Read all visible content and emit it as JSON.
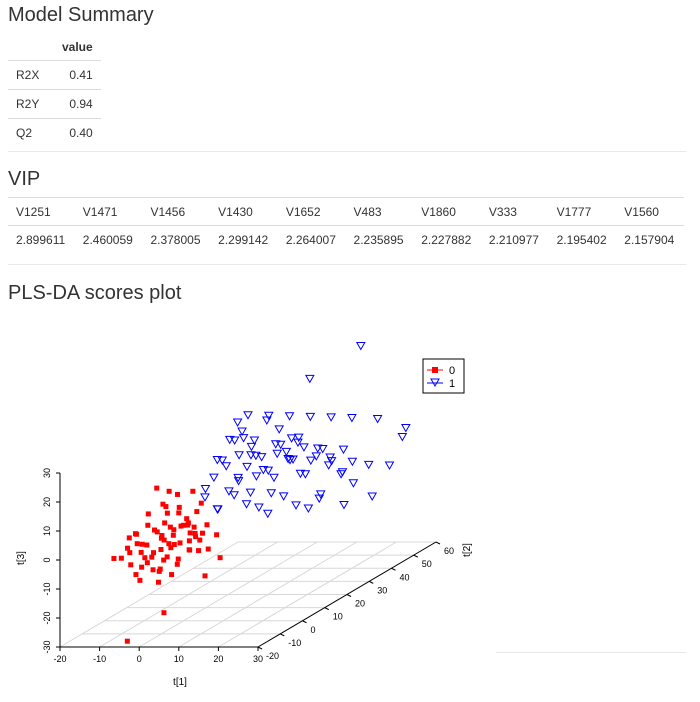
{
  "sections": {
    "model_summary_title": "Model Summary",
    "vip_title": "VIP",
    "scores_title": "PLS-DA scores plot"
  },
  "model_summary": {
    "header_value": "value",
    "rows": [
      {
        "metric": "R2X",
        "value": "0.41"
      },
      {
        "metric": "R2Y",
        "value": "0.94"
      },
      {
        "metric": "Q2",
        "value": "0.40"
      }
    ]
  },
  "vip": {
    "variables": [
      "V1251",
      "V1471",
      "V1456",
      "V1430",
      "V1652",
      "V483",
      "V1860",
      "V333",
      "V1777",
      "V1560"
    ],
    "values": [
      "2.899611",
      "2.460059",
      "2.378005",
      "2.299142",
      "2.264007",
      "2.235895",
      "2.227882",
      "2.210977",
      "2.195402",
      "2.157904"
    ]
  },
  "chart_data": {
    "type": "scatter",
    "projection": "3d",
    "title": "",
    "xlabel": "t[1]",
    "ylabel": "t[2]",
    "zlabel": "t[3]",
    "xlim": [
      -20,
      30
    ],
    "ylim": [
      -20,
      60
    ],
    "zlim": [
      -30,
      30
    ],
    "x_ticks": [
      "-20",
      "-10",
      "0",
      "10",
      "20",
      "30"
    ],
    "y_ticks": [
      "-20",
      "-10",
      "0",
      "10",
      "20",
      "30",
      "40",
      "50",
      "60"
    ],
    "z_ticks": [
      "-30",
      "-20",
      "-10",
      "0",
      "10",
      "20",
      "30"
    ],
    "legend_position": "top-right",
    "series": [
      {
        "name": "0",
        "marker": "square",
        "color": "#ff0000",
        "points": [
          [
            -8,
            -10,
            -2
          ],
          [
            -6,
            -8,
            0
          ],
          [
            -5,
            -12,
            2
          ],
          [
            -4,
            -6,
            4
          ],
          [
            -3,
            -9,
            -4
          ],
          [
            -2,
            -5,
            6
          ],
          [
            -1,
            -7,
            1
          ],
          [
            0,
            -10,
            3
          ],
          [
            1,
            -6,
            -1
          ],
          [
            2,
            -8,
            5
          ],
          [
            -7,
            -5,
            -6
          ],
          [
            -5,
            -3,
            2
          ],
          [
            -3,
            -2,
            8
          ],
          [
            -1,
            -4,
            -3
          ],
          [
            0,
            -2,
            10
          ],
          [
            1,
            -3,
            4
          ],
          [
            2,
            -1,
            -2
          ],
          [
            3,
            -4,
            7
          ],
          [
            4,
            -2,
            1
          ],
          [
            5,
            -6,
            3
          ],
          [
            -6,
            -11,
            5
          ],
          [
            -4,
            -12,
            -1
          ],
          [
            -2,
            -13,
            2
          ],
          [
            0,
            -9,
            -5
          ],
          [
            2,
            -11,
            -3
          ],
          [
            3,
            -7,
            0
          ],
          [
            4,
            -5,
            6
          ],
          [
            5,
            -3,
            9
          ],
          [
            6,
            -8,
            -2
          ],
          [
            7,
            -4,
            2
          ],
          [
            -9,
            -12,
            -3
          ],
          [
            -8,
            -7,
            3
          ],
          [
            -4,
            -9,
            7
          ],
          [
            -2,
            -10,
            -2
          ],
          [
            0,
            -6,
            5
          ],
          [
            1,
            -12,
            0
          ],
          [
            3,
            -10,
            4
          ],
          [
            6,
            -6,
            5
          ],
          [
            8,
            -7,
            1
          ],
          [
            -3,
            -4,
            12
          ],
          [
            -1,
            -1,
            14
          ],
          [
            1,
            0,
            3
          ],
          [
            3,
            0,
            -1
          ],
          [
            5,
            -1,
            11
          ],
          [
            7,
            -2,
            4
          ],
          [
            -10,
            -6,
            -8
          ],
          [
            -7,
            -9,
            -10
          ],
          [
            -5,
            -10,
            -7
          ],
          [
            -2,
            -7,
            -9
          ],
          [
            0,
            -11,
            -8
          ],
          [
            2,
            -9,
            -10
          ],
          [
            4,
            -10,
            -6
          ],
          [
            6,
            -4,
            -4
          ],
          [
            9,
            -5,
            -3
          ],
          [
            10,
            -3,
            1
          ],
          [
            -3,
            -6,
            -14
          ],
          [
            -6,
            -9,
            -12
          ],
          [
            -1,
            -8,
            3
          ],
          [
            1,
            -4,
            9
          ],
          [
            2,
            -6,
            -6
          ],
          [
            12,
            -5,
            -6
          ],
          [
            11,
            -10,
            -10
          ],
          [
            -4,
            -5,
            18
          ],
          [
            -2,
            -3,
            16
          ],
          [
            4,
            -3,
            16
          ],
          [
            0,
            -8,
            13
          ],
          [
            -1,
            -12,
            -7
          ],
          [
            3,
            -12,
            2
          ],
          [
            -8,
            -11,
            0
          ],
          [
            5,
            -9,
            7
          ],
          [
            7,
            -10,
            -1
          ],
          [
            -5,
            -7,
            10
          ],
          [
            -3,
            -11,
            -5
          ],
          [
            -7,
            -12,
            4
          ],
          [
            -12,
            -10,
            -4
          ],
          [
            -3,
            -20,
            -28
          ],
          [
            4,
            -16,
            -20
          ]
        ]
      },
      {
        "name": "1",
        "marker": "triangle-down",
        "color": "#0000ff",
        "points": [
          [
            2,
            10,
            15
          ],
          [
            4,
            12,
            18
          ],
          [
            6,
            14,
            12
          ],
          [
            8,
            16,
            20
          ],
          [
            10,
            18,
            14
          ],
          [
            12,
            20,
            22
          ],
          [
            14,
            22,
            16
          ],
          [
            16,
            24,
            10
          ],
          [
            3,
            15,
            8
          ],
          [
            5,
            18,
            25
          ],
          [
            7,
            20,
            18
          ],
          [
            9,
            22,
            12
          ],
          [
            11,
            24,
            20
          ],
          [
            13,
            26,
            14
          ],
          [
            15,
            28,
            8
          ],
          [
            17,
            30,
            16
          ],
          [
            19,
            32,
            12
          ],
          [
            21,
            34,
            6
          ],
          [
            4,
            8,
            22
          ],
          [
            6,
            10,
            28
          ],
          [
            8,
            12,
            30
          ],
          [
            10,
            14,
            26
          ],
          [
            12,
            16,
            32
          ],
          [
            14,
            18,
            28
          ],
          [
            16,
            20,
            24
          ],
          [
            18,
            22,
            20
          ],
          [
            20,
            24,
            16
          ],
          [
            22,
            26,
            12
          ],
          [
            24,
            28,
            8
          ],
          [
            26,
            30,
            4
          ],
          [
            2,
            6,
            10
          ],
          [
            4,
            8,
            5
          ],
          [
            6,
            12,
            8
          ],
          [
            8,
            14,
            4
          ],
          [
            10,
            16,
            2
          ],
          [
            12,
            18,
            6
          ],
          [
            14,
            20,
            4
          ],
          [
            16,
            22,
            0
          ],
          [
            18,
            24,
            -2
          ],
          [
            20,
            26,
            2
          ],
          [
            5,
            20,
            32
          ],
          [
            8,
            24,
            30
          ],
          [
            11,
            28,
            28
          ],
          [
            14,
            32,
            26
          ],
          [
            17,
            36,
            24
          ],
          [
            20,
            40,
            22
          ],
          [
            10,
            30,
            12
          ],
          [
            13,
            34,
            10
          ],
          [
            16,
            38,
            8
          ],
          [
            19,
            42,
            6
          ],
          [
            22,
            44,
            4
          ],
          [
            25,
            48,
            2
          ],
          [
            7,
            16,
            16
          ],
          [
            9,
            19,
            18
          ],
          [
            11,
            21,
            10
          ],
          [
            13,
            23,
            18
          ],
          [
            15,
            25,
            22
          ],
          [
            3,
            12,
            20
          ],
          [
            5,
            14,
            26
          ],
          [
            7,
            18,
            22
          ],
          [
            15,
            30,
            40
          ],
          [
            20,
            44,
            45
          ],
          [
            28,
            50,
            14
          ],
          [
            24,
            42,
            -6
          ],
          [
            18,
            40,
            -8
          ],
          [
            14,
            36,
            -4
          ],
          [
            10,
            20,
            -2
          ],
          [
            26,
            52,
            10
          ],
          [
            22,
            48,
            18
          ],
          [
            6,
            22,
            10
          ],
          [
            9,
            26,
            16
          ],
          [
            12,
            30,
            18
          ],
          [
            16,
            34,
            14
          ],
          [
            19,
            38,
            12
          ],
          [
            8,
            10,
            34
          ],
          [
            1,
            8,
            12
          ],
          [
            3,
            10,
            4
          ],
          [
            5,
            16,
            20
          ],
          [
            7,
            12,
            14
          ],
          [
            9,
            14,
            8
          ]
        ]
      }
    ]
  }
}
